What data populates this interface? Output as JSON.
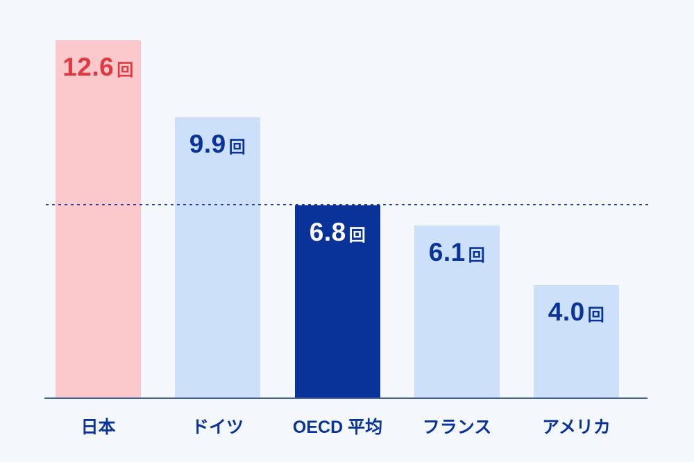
{
  "chart_data": {
    "type": "bar",
    "title": "",
    "categories": [
      "日本",
      "ドイツ",
      "OECD 平均",
      "フランス",
      "アメリカ"
    ],
    "values": [
      12.6,
      9.9,
      6.8,
      6.1,
      4.0
    ],
    "unit": "回",
    "ylim": [
      0,
      13.2
    ],
    "grid": false,
    "legend": false,
    "bars": [
      {
        "label": "日本",
        "value": 12.6,
        "value_display": "12.6",
        "unit": "回",
        "bar_color": "#fbc9cc",
        "text_color": "#e23840"
      },
      {
        "label": "ドイツ",
        "value": 9.9,
        "value_display": "9.9",
        "unit": "回",
        "bar_color": "#cce0fa",
        "text_color": "#0a339a"
      },
      {
        "label": "OECD 平均",
        "value": 6.8,
        "value_display": "6.8",
        "unit": "回",
        "bar_color": "#0a339a",
        "text_color": "#ffffff"
      },
      {
        "label": "フランス",
        "value": 6.1,
        "value_display": "6.1",
        "unit": "回",
        "bar_color": "#cce0fa",
        "text_color": "#0a339a"
      },
      {
        "label": "アメリカ",
        "value": 4.0,
        "value_display": "4.0",
        "unit": "回",
        "bar_color": "#cce0fa",
        "text_color": "#0a339a"
      }
    ],
    "reference_line": {
      "value": 6.8,
      "style": "dotted",
      "color": "#2f3e93"
    }
  },
  "colors": {
    "background": "#f4f8fc",
    "axis": "#41609f",
    "highlight_pink": "#fbc9cc",
    "highlight_red": "#e23840",
    "light_blue": "#cce0fa",
    "navy": "#0a339a"
  }
}
